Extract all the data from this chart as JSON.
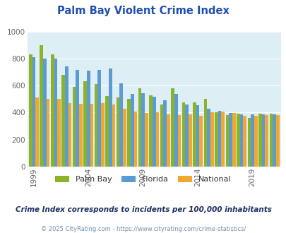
{
  "title": "Palm Bay Violent Crime Index",
  "subtitle": "Crime Index corresponds to incidents per 100,000 inhabitants",
  "footer": "© 2025 CityRating.com - https://www.cityrating.com/crime-statistics/",
  "years": [
    1999,
    2000,
    2001,
    2002,
    2003,
    2004,
    2005,
    2006,
    2007,
    2008,
    2009,
    2010,
    2011,
    2012,
    2013,
    2014,
    2015,
    2016,
    2017,
    2018,
    2019,
    2020,
    2021
  ],
  "palm_bay": [
    830,
    900,
    830,
    680,
    590,
    630,
    610,
    520,
    510,
    500,
    580,
    530,
    460,
    580,
    475,
    475,
    500,
    400,
    380,
    390,
    360,
    390,
    390
  ],
  "florida": [
    810,
    800,
    800,
    740,
    715,
    710,
    715,
    725,
    615,
    540,
    545,
    515,
    490,
    540,
    460,
    455,
    430,
    410,
    395,
    385,
    385,
    385,
    385
  ],
  "national": [
    510,
    500,
    500,
    470,
    465,
    465,
    470,
    460,
    430,
    405,
    395,
    400,
    385,
    380,
    385,
    375,
    400,
    405,
    395,
    375,
    375,
    380,
    380
  ],
  "palm_bay_color": "#8ab32b",
  "florida_color": "#5b9bd5",
  "national_color": "#f0a830",
  "bg_color": "#ddeef5",
  "ylim": [
    0,
    1000
  ],
  "yticks": [
    0,
    200,
    400,
    600,
    800,
    1000
  ],
  "xtick_years": [
    1999,
    2004,
    2009,
    2014,
    2019
  ],
  "title_color": "#1f4fb0",
  "subtitle_color": "#1a3060",
  "footer_color": "#7090b0",
  "grid_color": "#ffffff"
}
